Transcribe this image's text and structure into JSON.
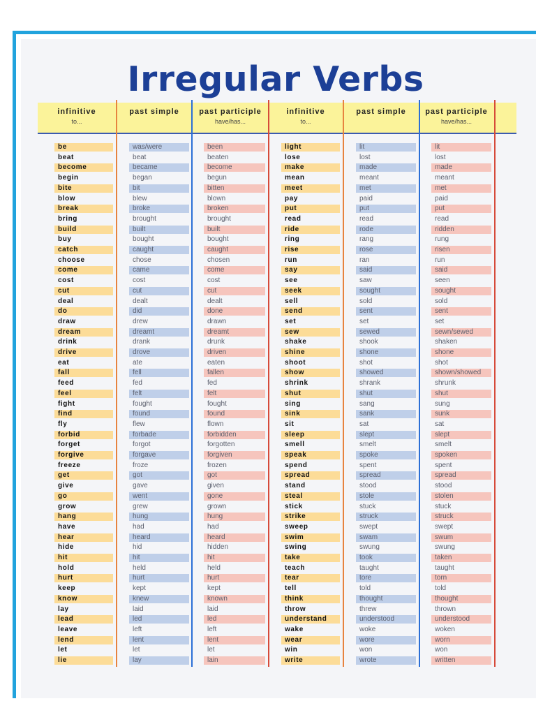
{
  "title": "Irregular Verbs",
  "headers": [
    {
      "label": "infinitive",
      "sub": "to..."
    },
    {
      "label": "past simple",
      "sub": ""
    },
    {
      "label": "past participle",
      "sub": "have/has..."
    },
    {
      "label": "infinitive",
      "sub": "to..."
    },
    {
      "label": "past simple",
      "sub": ""
    },
    {
      "label": "past participle",
      "sub": "have/has..."
    }
  ],
  "colors": {
    "frame": "#21a3dd",
    "title": "#1c3f96",
    "header_band": "#fbf39a",
    "infinitive_highlight": "#fcdc98",
    "past_simple_highlight": "#bfcfe9",
    "past_participle_highlight": "#f6c5bd",
    "divider_orange": "#e7833f",
    "divider_blue": "#2b6fd6",
    "divider_red": "#d64a3a"
  },
  "left_verbs": [
    [
      "be",
      "was/were",
      "been"
    ],
    [
      "beat",
      "beat",
      "beaten"
    ],
    [
      "become",
      "became",
      "become"
    ],
    [
      "begin",
      "began",
      "begun"
    ],
    [
      "bite",
      "bit",
      "bitten"
    ],
    [
      "blow",
      "blew",
      "blown"
    ],
    [
      "break",
      "broke",
      "broken"
    ],
    [
      "bring",
      "brought",
      "brought"
    ],
    [
      "build",
      "built",
      "built"
    ],
    [
      "buy",
      "bought",
      "bought"
    ],
    [
      "catch",
      "caught",
      "caught"
    ],
    [
      "choose",
      "chose",
      "chosen"
    ],
    [
      "come",
      "came",
      "come"
    ],
    [
      "cost",
      "cost",
      "cost"
    ],
    [
      "cut",
      "cut",
      "cut"
    ],
    [
      "deal",
      "dealt",
      "dealt"
    ],
    [
      "do",
      "did",
      "done"
    ],
    [
      "draw",
      "drew",
      "drawn"
    ],
    [
      "dream",
      "dreamt",
      "dreamt"
    ],
    [
      "drink",
      "drank",
      "drunk"
    ],
    [
      "drive",
      "drove",
      "driven"
    ],
    [
      "eat",
      "ate",
      "eaten"
    ],
    [
      "fall",
      "fell",
      "fallen"
    ],
    [
      "feed",
      "fed",
      "fed"
    ],
    [
      "feel",
      "felt",
      "felt"
    ],
    [
      "fight",
      "fought",
      "fought"
    ],
    [
      "find",
      "found",
      "found"
    ],
    [
      "fly",
      "flew",
      "flown"
    ],
    [
      "forbid",
      "forbade",
      "forbidden"
    ],
    [
      "forget",
      "forgot",
      "forgotten"
    ],
    [
      "forgive",
      "forgave",
      "forgiven"
    ],
    [
      "freeze",
      "froze",
      "frozen"
    ],
    [
      "get",
      "got",
      "got"
    ],
    [
      "give",
      "gave",
      "given"
    ],
    [
      "go",
      "went",
      "gone"
    ],
    [
      "grow",
      "grew",
      "grown"
    ],
    [
      "hang",
      "hung",
      "hung"
    ],
    [
      "have",
      "had",
      "had"
    ],
    [
      "hear",
      "heard",
      "heard"
    ],
    [
      "hide",
      "hid",
      "hidden"
    ],
    [
      "hit",
      "hit",
      "hit"
    ],
    [
      "hold",
      "held",
      "held"
    ],
    [
      "hurt",
      "hurt",
      "hurt"
    ],
    [
      "keep",
      "kept",
      "kept"
    ],
    [
      "know",
      "knew",
      "known"
    ],
    [
      "lay",
      "laid",
      "laid"
    ],
    [
      "lead",
      "led",
      "led"
    ],
    [
      "leave",
      "left",
      "left"
    ],
    [
      "lend",
      "lent",
      "lent"
    ],
    [
      "let",
      "let",
      "let"
    ],
    [
      "lie",
      "lay",
      "lain"
    ]
  ],
  "right_verbs": [
    [
      "light",
      "lit",
      "lit"
    ],
    [
      "lose",
      "lost",
      "lost"
    ],
    [
      "make",
      "made",
      "made"
    ],
    [
      "mean",
      "meant",
      "meant"
    ],
    [
      "meet",
      "met",
      "met"
    ],
    [
      "pay",
      "paid",
      "paid"
    ],
    [
      "put",
      "put",
      "put"
    ],
    [
      "read",
      "read",
      "read"
    ],
    [
      "ride",
      "rode",
      "ridden"
    ],
    [
      "ring",
      "rang",
      "rung"
    ],
    [
      "rise",
      "rose",
      "risen"
    ],
    [
      "run",
      "ran",
      "run"
    ],
    [
      "say",
      "said",
      "said"
    ],
    [
      "see",
      "saw",
      "seen"
    ],
    [
      "seek",
      "sought",
      "sought"
    ],
    [
      "sell",
      "sold",
      "sold"
    ],
    [
      "send",
      "sent",
      "sent"
    ],
    [
      "set",
      "set",
      "set"
    ],
    [
      "sew",
      "sewed",
      "sewn/sewed"
    ],
    [
      "shake",
      "shook",
      "shaken"
    ],
    [
      "shine",
      "shone",
      "shone"
    ],
    [
      "shoot",
      "shot",
      "shot"
    ],
    [
      "show",
      "showed",
      "shown/showed"
    ],
    [
      "shrink",
      "shrank",
      "shrunk"
    ],
    [
      "shut",
      "shut",
      "shut"
    ],
    [
      "sing",
      "sang",
      "sung"
    ],
    [
      "sink",
      "sank",
      "sunk"
    ],
    [
      "sit",
      "sat",
      "sat"
    ],
    [
      "sleep",
      "slept",
      "slept"
    ],
    [
      "smell",
      "smelt",
      "smelt"
    ],
    [
      "speak",
      "spoke",
      "spoken"
    ],
    [
      "spend",
      "spent",
      "spent"
    ],
    [
      "spread",
      "spread",
      "spread"
    ],
    [
      "stand",
      "stood",
      "stood"
    ],
    [
      "steal",
      "stole",
      "stolen"
    ],
    [
      "stick",
      "stuck",
      "stuck"
    ],
    [
      "strike",
      "struck",
      "struck"
    ],
    [
      "sweep",
      "swept",
      "swept"
    ],
    [
      "swim",
      "swam",
      "swum"
    ],
    [
      "swing",
      "swung",
      "swung"
    ],
    [
      "take",
      "took",
      "taken"
    ],
    [
      "teach",
      "taught",
      "taught"
    ],
    [
      "tear",
      "tore",
      "torn"
    ],
    [
      "tell",
      "told",
      "told"
    ],
    [
      "think",
      "thought",
      "thought"
    ],
    [
      "throw",
      "threw",
      "thrown"
    ],
    [
      "understand",
      "understood",
      "understood"
    ],
    [
      "wake",
      "woke",
      "woken"
    ],
    [
      "wear",
      "wore",
      "worn"
    ],
    [
      "win",
      "won",
      "won"
    ],
    [
      "write",
      "wrote",
      "written"
    ]
  ]
}
